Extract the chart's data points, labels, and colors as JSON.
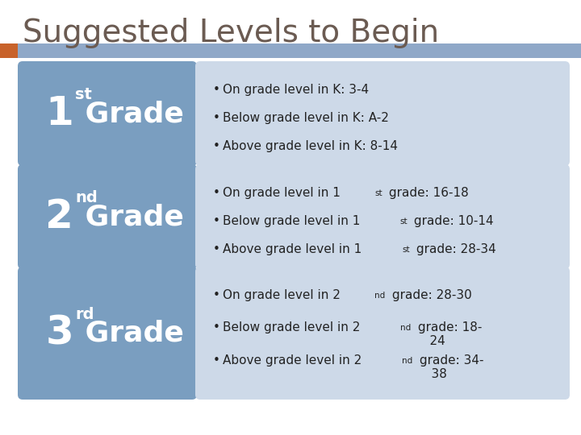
{
  "title": "Suggested Levels to Begin",
  "title_color": "#6b5b52",
  "title_fontsize": 28,
  "background_color": "#ffffff",
  "header_bar_color": "#8fa8c8",
  "header_bar_orange": "#c8622a",
  "box_color": "#7a9ec0",
  "right_panel_color": "#cdd9e8",
  "text_color": "#222222",
  "white": "#ffffff",
  "rows": [
    {
      "num": "1",
      "sup": "st",
      "bullets": [
        [
          "On grade level in K: 3-4",
          null,
          null
        ],
        [
          "Below grade level in K: A-2",
          null,
          null
        ],
        [
          "Above grade level in K: 8-14",
          null,
          null
        ]
      ]
    },
    {
      "num": "2",
      "sup": "nd",
      "bullets": [
        [
          "On grade level in 1",
          "st",
          " grade: 16-18"
        ],
        [
          "Below grade level in 1",
          "st",
          " grade: 10-14"
        ],
        [
          "Above grade level in 1",
          "st",
          " grade: 28-34"
        ]
      ]
    },
    {
      "num": "3",
      "sup": "rd",
      "bullets": [
        [
          "On grade level in 2",
          "nd",
          " grade: 28-30"
        ],
        [
          "Below grade level in 2",
          "nd",
          " grade: 18-\n    24"
        ],
        [
          "Above grade level in 2",
          "nd",
          " grade: 34-\n    38"
        ]
      ]
    }
  ]
}
